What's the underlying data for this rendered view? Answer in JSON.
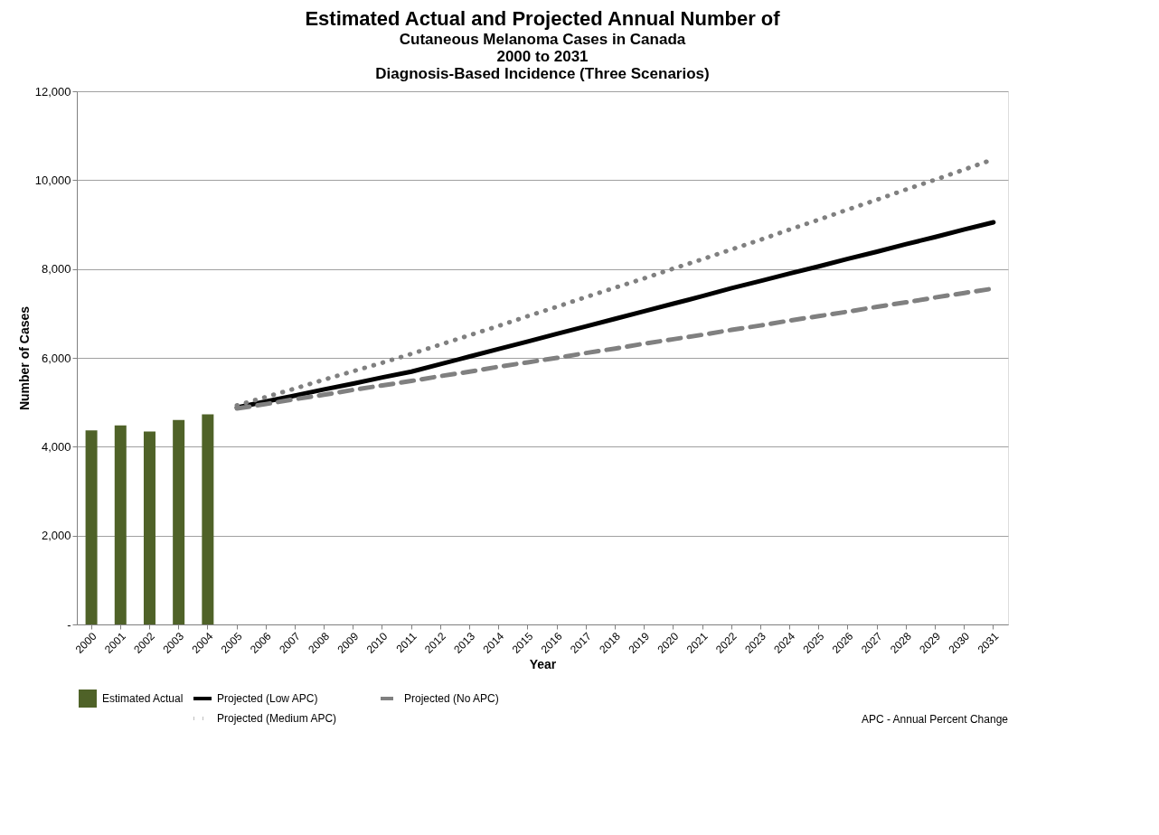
{
  "chart_data": {
    "type": "bar",
    "title": "Estimated Actual and Projected Annual Number of",
    "subtitle": "Cutaneous Melanoma  Cases in Canada\n2000 to 2031\nDiagnosis-Based Incidence (Three Scenarios)",
    "xlabel": "Year",
    "ylabel": "Number of Cases",
    "categories": [
      "2000",
      "2001",
      "2002",
      "2003",
      "2004",
      "2005",
      "2006",
      "2007",
      "2008",
      "2009",
      "2010",
      "2011",
      "2012",
      "2013",
      "2014",
      "2015",
      "2016",
      "2017",
      "2018",
      "2019",
      "2020",
      "2021",
      "2022",
      "2023",
      "2024",
      "2025",
      "2026",
      "2027",
      "2028",
      "2029",
      "2030",
      "2031"
    ],
    "series": [
      {
        "name": "Estimated Actual",
        "color": "#4f6228",
        "values": [
          4370,
          4480,
          4340,
          4600,
          4730,
          null,
          null,
          null,
          null,
          null,
          null,
          null,
          null,
          null,
          null,
          null,
          null,
          null,
          null,
          null,
          null,
          null,
          null,
          null,
          null,
          null,
          null,
          null,
          null,
          null,
          null,
          null
        ]
      },
      {
        "name": "Projected (Low APC)",
        "type": "line",
        "line_style": "solid",
        "color": "#000000",
        "values": [
          null,
          null,
          null,
          null,
          null,
          4880,
          5020,
          5150,
          5290,
          5420,
          5560,
          5690,
          5860,
          6030,
          6200,
          6370,
          6540,
          6710,
          6880,
          7050,
          7220,
          7390,
          7570,
          7730,
          7900,
          8060,
          8230,
          8390,
          8560,
          8720,
          8890,
          9050
        ]
      },
      {
        "name": "Projected (No APC)",
        "type": "line",
        "line_style": "dashed",
        "color": "#808080",
        "values": [
          null,
          null,
          null,
          null,
          null,
          4860,
          4960,
          5070,
          5170,
          5280,
          5380,
          5480,
          5590,
          5690,
          5800,
          5900,
          6000,
          6110,
          6210,
          6320,
          6420,
          6520,
          6630,
          6730,
          6840,
          6940,
          7040,
          7150,
          7250,
          7360,
          7460,
          7560
        ]
      },
      {
        "name": "Projected (Medium APC)",
        "type": "line",
        "line_style": "dotted",
        "color": "#808080",
        "values": [
          null,
          null,
          null,
          null,
          null,
          4930,
          5120,
          5310,
          5510,
          5700,
          5890,
          6090,
          6300,
          6510,
          6720,
          6940,
          7150,
          7370,
          7580,
          7790,
          8010,
          8220,
          8440,
          8660,
          8890,
          9110,
          9340,
          9560,
          9790,
          10010,
          10240,
          10470
        ]
      }
    ],
    "ylim": [
      0,
      12000
    ],
    "yticks": [
      {
        "value": 0,
        "label": "-"
      },
      {
        "value": 2000,
        "label": "2,000"
      },
      {
        "value": 4000,
        "label": "4,000"
      },
      {
        "value": 6000,
        "label": "6,000"
      },
      {
        "value": 8000,
        "label": "8,000"
      },
      {
        "value": 10000,
        "label": "10,000"
      },
      {
        "value": 12000,
        "label": "12,000"
      }
    ],
    "grid": "y",
    "legend": "bottom left",
    "annotations": [
      "APC - Annual Percent Change"
    ]
  }
}
